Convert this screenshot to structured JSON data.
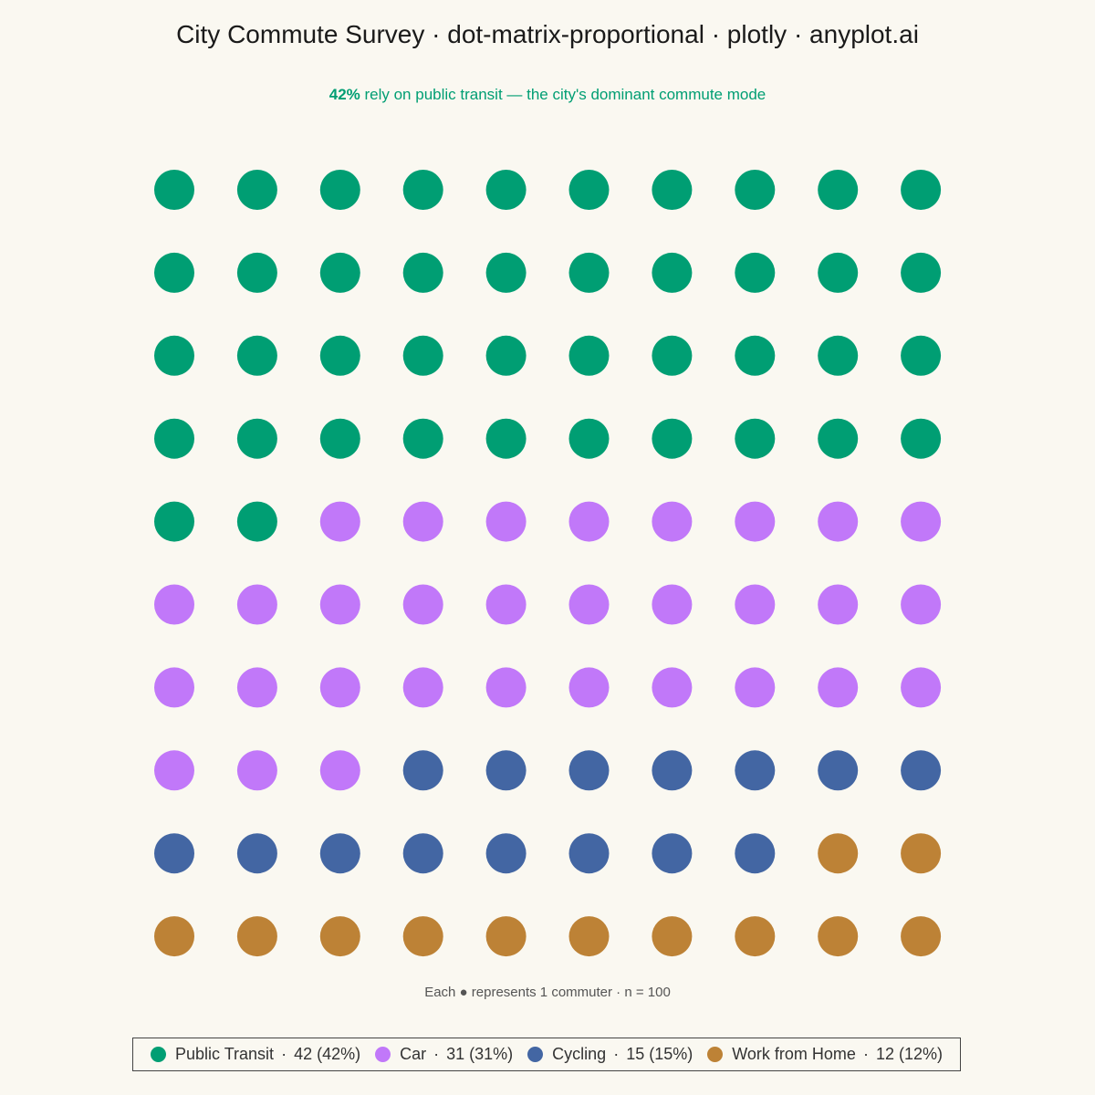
{
  "title": "City Commute Survey · dot-matrix-proportional · plotly · anyplot.ai",
  "subtitle": {
    "highlight": "42%",
    "text": " rely on public transit — the city's dominant commute mode"
  },
  "unit_note": "Each ● represents 1 commuter  ·  n = 100",
  "legend": {
    "separator": "·",
    "items": [
      {
        "name": "Public Transit",
        "value": "42 (42%)",
        "color": "#009E73"
      },
      {
        "name": "Car",
        "value": "31 (31%)",
        "color": "#C178F9"
      },
      {
        "name": "Cycling",
        "value": "15 (15%)",
        "color": "#4366A3"
      },
      {
        "name": "Work from Home",
        "value": "12 (12%)",
        "color": "#BD8236"
      }
    ]
  },
  "chart_data": {
    "type": "dot-matrix",
    "grid": {
      "rows": 10,
      "columns": 10
    },
    "total": 100,
    "categories": [
      "Public Transit",
      "Car",
      "Cycling",
      "Work from Home"
    ],
    "values": [
      42,
      31,
      15,
      12
    ],
    "colors": [
      "#009E73",
      "#C178F9",
      "#4366A3",
      "#BD8236"
    ],
    "fill_order": "row-major, top-left to bottom-right"
  }
}
